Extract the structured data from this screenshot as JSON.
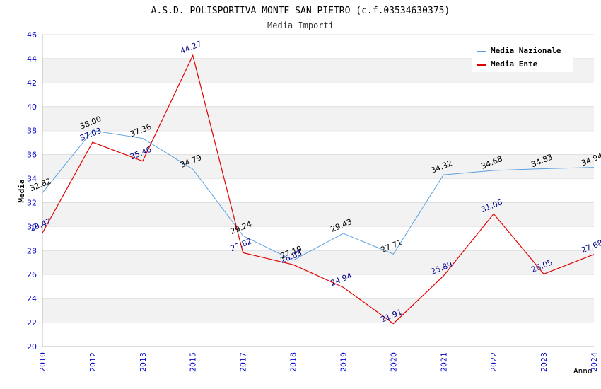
{
  "chart_data": {
    "type": "line",
    "title": "A.S.D. POLISPORTIVA MONTE SAN PIETRO (c.f.03534630375)",
    "subtitle": "Media Importi",
    "xlabel": "Anno",
    "ylabel": "Media",
    "ylim": [
      20,
      46
    ],
    "yticks": [
      "20",
      "22",
      "24",
      "26",
      "28",
      "30",
      "32",
      "34",
      "36",
      "38",
      "40",
      "42",
      "44",
      "46"
    ],
    "categories": [
      "2010",
      "2012",
      "2013",
      "2015",
      "2017",
      "2018",
      "2019",
      "2020",
      "2021",
      "2022",
      "2023",
      "2024"
    ],
    "legend_position": "top-right",
    "grid": true,
    "series": [
      {
        "name": "Media Nazionale",
        "color": "#5aa0e0",
        "label_color": "#000000",
        "values": [
          32.82,
          38.0,
          37.36,
          34.79,
          29.24,
          27.19,
          29.43,
          27.71,
          34.32,
          34.68,
          34.83,
          34.94
        ],
        "labels": [
          "32.82",
          "38.00",
          "37.36",
          "34.79",
          "29.24",
          "27.19",
          "29.43",
          "27.71",
          "34.32",
          "34.68",
          "34.83",
          "34.94"
        ]
      },
      {
        "name": "Media Ente",
        "color": "#e00000",
        "label_color": "#00008b",
        "values": [
          29.47,
          37.03,
          35.46,
          44.27,
          27.82,
          26.83,
          24.94,
          21.91,
          25.89,
          31.06,
          26.05,
          27.68
        ],
        "labels": [
          "29.47",
          "37.03",
          "35.46",
          "44.27",
          "27.82",
          "26.83",
          "24.94",
          "21.91",
          "25.89",
          "31.06",
          "26.05",
          "27.68"
        ]
      }
    ]
  }
}
